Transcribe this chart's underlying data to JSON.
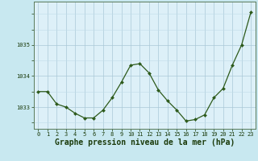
{
  "hours": [
    0,
    1,
    2,
    3,
    4,
    5,
    6,
    7,
    8,
    9,
    10,
    11,
    12,
    13,
    14,
    15,
    16,
    17,
    18,
    19,
    20,
    21,
    22,
    23
  ],
  "pressure": [
    1033.5,
    1033.5,
    1033.1,
    1033.0,
    1032.8,
    1032.65,
    1032.65,
    1032.9,
    1033.3,
    1033.8,
    1034.35,
    1034.4,
    1034.1,
    1033.55,
    1033.2,
    1032.9,
    1032.55,
    1032.6,
    1032.75,
    1033.3,
    1033.6,
    1034.35,
    1035.0,
    1036.05
  ],
  "line_color": "#2d5a1b",
  "marker_color": "#2d5a1b",
  "bg_color": "#c8e8f0",
  "grid_color_major": "#aac8d8",
  "grid_color_minor": "#c0dce8",
  "plot_bg": "#ddf0f8",
  "xlabel": "Graphe pression niveau de la mer (hPa)",
  "ylabel": "",
  "ylim": [
    1032.3,
    1036.4
  ],
  "yticks": [
    1033,
    1034,
    1035
  ],
  "xticks": [
    0,
    1,
    2,
    3,
    4,
    5,
    6,
    7,
    8,
    9,
    10,
    11,
    12,
    13,
    14,
    15,
    16,
    17,
    18,
    19,
    20,
    21,
    22,
    23
  ],
  "tick_fontsize": 5.0,
  "xlabel_fontsize": 7.0,
  "marker_size": 2.0,
  "line_width": 0.9
}
